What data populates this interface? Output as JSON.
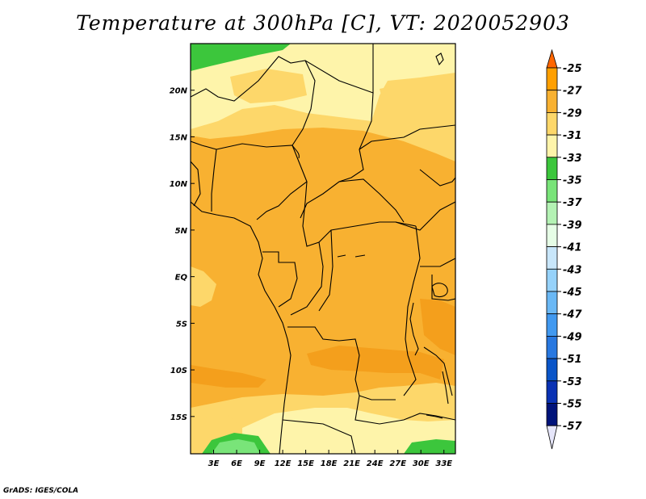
{
  "title": "Temperature at 300hPa [C], VT: 2020052903",
  "credit": "GrADS: IGES/COLA",
  "map": {
    "x_ticks": [
      "3E",
      "6E",
      "9E",
      "12E",
      "15E",
      "18E",
      "21E",
      "24E",
      "27E",
      "30E",
      "33E"
    ],
    "y_ticks": [
      "20N",
      "15N",
      "10N",
      "5N",
      "EQ",
      "5S",
      "10S",
      "15S"
    ],
    "x_range_deg": [
      0,
      34.5
    ],
    "y_range_deg": [
      -19,
      25
    ]
  },
  "colorbar": {
    "levels": [
      "-25",
      "-27",
      "-29",
      "-31",
      "-33",
      "-35",
      "-37",
      "-39",
      "-41",
      "-43",
      "-45",
      "-47",
      "-49",
      "-51",
      "-53",
      "-55",
      "-57"
    ],
    "colors": [
      "#ff6600",
      "#ff9f00",
      "#f8b131",
      "#fdd76a",
      "#fef4aa",
      "#3cc63c",
      "#79e479",
      "#b4f2b4",
      "#e6fde6",
      "#c8e6fa",
      "#96d2fa",
      "#6ab8f5",
      "#4199f0",
      "#2878e0",
      "#0a55c8",
      "#0a32b4",
      "#00137a",
      "#e6e6fa"
    ]
  },
  "fields": {
    "warm_band_color": "#f8b131",
    "moderate_color": "#fdd76a",
    "cool_color": "#fef4aa",
    "green_color": "#3cc63c",
    "light_green_color": "#79e479",
    "warmest_patch_color": "#f49f1c"
  }
}
